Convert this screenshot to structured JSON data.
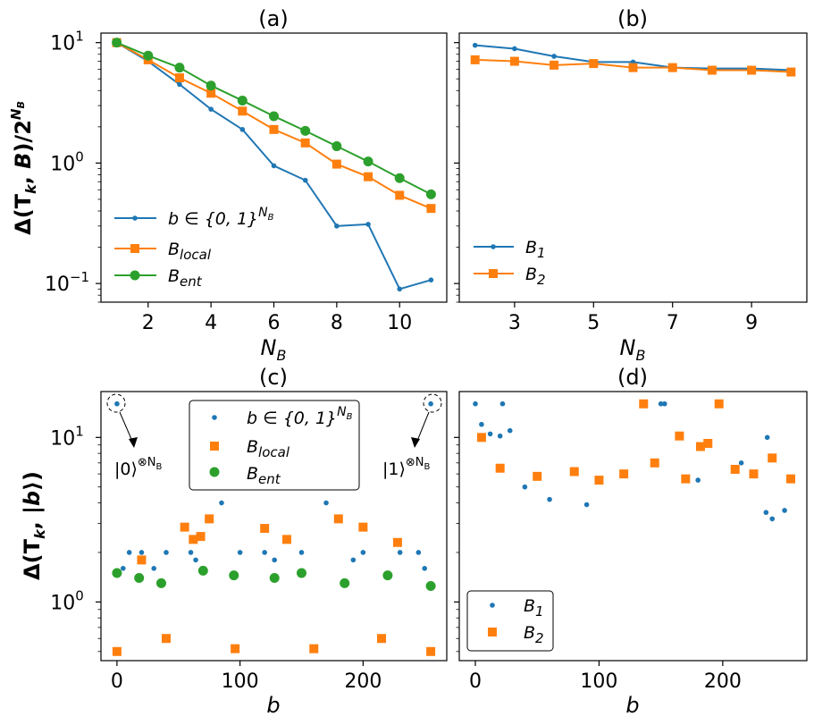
{
  "colors": {
    "blue": "#1f77b4",
    "orange": "#ff7f0e",
    "green": "#2ca02c"
  },
  "chart_data": [
    {
      "panel": "a",
      "type": "line",
      "title": "(a)",
      "xlabel": "N_B",
      "ylabel": "Δ(T_k, B)/2^{N_B}",
      "yscale": "log",
      "xlim": [
        0.5,
        11.5
      ],
      "ylim": [
        0.07,
        12
      ],
      "xticks": [
        2,
        4,
        6,
        8,
        10
      ],
      "yticks": [
        0.1,
        1,
        10
      ],
      "legend_position": "lower-left",
      "series": [
        {
          "name": "b∈{0,1}^{N_B}",
          "color": "blue",
          "marker": "dot",
          "x": [
            1,
            2,
            3,
            4,
            5,
            6,
            7,
            8,
            9,
            10,
            11
          ],
          "values": [
            10,
            7.0,
            4.5,
            2.8,
            1.9,
            0.95,
            0.72,
            0.3,
            0.31,
            0.09,
            0.107
          ]
        },
        {
          "name": "B_local",
          "color": "orange",
          "marker": "square",
          "x": [
            1,
            2,
            3,
            4,
            5,
            6,
            7,
            8,
            9,
            10,
            11
          ],
          "values": [
            10,
            7.2,
            5.1,
            3.8,
            2.7,
            1.9,
            1.47,
            0.98,
            0.77,
            0.54,
            0.42
          ]
        },
        {
          "name": "B_ent",
          "color": "green",
          "marker": "circle",
          "x": [
            1,
            2,
            3,
            4,
            5,
            6,
            7,
            8,
            9,
            10,
            11
          ],
          "values": [
            10,
            7.8,
            6.2,
            4.4,
            3.3,
            2.45,
            1.85,
            1.38,
            1.03,
            0.75,
            0.55
          ]
        }
      ]
    },
    {
      "panel": "b",
      "type": "line",
      "title": "(b)",
      "xlabel": "N_B",
      "yscale": "log",
      "xlim": [
        1.6,
        10.4
      ],
      "ylim": [
        0.07,
        12
      ],
      "xticks": [
        3,
        5,
        7,
        9
      ],
      "legend_position": "lower-left",
      "series": [
        {
          "name": "B_1",
          "color": "blue",
          "marker": "dot",
          "x": [
            2,
            3,
            4,
            5,
            6,
            7,
            8,
            9,
            10
          ],
          "values": [
            9.5,
            8.9,
            7.7,
            6.9,
            6.9,
            6.2,
            6.1,
            6.1,
            5.9
          ]
        },
        {
          "name": "B_2",
          "color": "orange",
          "marker": "square",
          "x": [
            2,
            3,
            4,
            5,
            6,
            7,
            8,
            9,
            10
          ],
          "values": [
            7.2,
            7.0,
            6.5,
            6.7,
            6.2,
            6.2,
            5.9,
            5.9,
            5.7
          ]
        }
      ]
    },
    {
      "panel": "c",
      "type": "scatter",
      "title": "(c)",
      "xlabel": "b",
      "ylabel": "Δ(T_k, |b⟩)",
      "yscale": "log",
      "xlim": [
        -13,
        268
      ],
      "ylim": [
        0.44,
        19
      ],
      "xticks": [
        0,
        100,
        200
      ],
      "yticks": [
        1,
        10
      ],
      "legend_position": "top-center",
      "annotations": [
        "|0⟩^{⊗N_B}",
        "|1⟩^{⊗N_B}"
      ],
      "series": [
        {
          "name": "b∈{0,1}^{N_B}",
          "color": "blue",
          "marker": "dot",
          "x": [
            0,
            255,
            85,
            170,
            10,
            20,
            40,
            60,
            100,
            120,
            150,
            200,
            230,
            245,
            5,
            250,
            30,
            64,
            128,
            192
          ],
          "values": [
            16,
            16,
            4,
            4,
            2,
            2,
            2,
            2,
            2,
            2,
            2,
            2,
            2,
            2,
            1.6,
            1.6,
            1.6,
            1.8,
            1.8,
            1.8
          ]
        },
        {
          "name": "B_local",
          "color": "orange",
          "marker": "square",
          "x": [
            0,
            255,
            96,
            160,
            40,
            215,
            55,
            75,
            180,
            200,
            62,
            68,
            120,
            138,
            228,
            20
          ],
          "values": [
            0.5,
            0.5,
            0.52,
            0.52,
            0.6,
            0.6,
            2.85,
            3.2,
            3.2,
            2.85,
            2.4,
            2.5,
            2.8,
            2.4,
            2.3,
            1.8
          ]
        },
        {
          "name": "B_ent",
          "color": "green",
          "marker": "circle",
          "x": [
            0,
            18,
            36,
            70,
            95,
            128,
            150,
            185,
            220,
            255
          ],
          "values": [
            1.5,
            1.4,
            1.3,
            1.55,
            1.45,
            1.4,
            1.5,
            1.3,
            1.45,
            1.25
          ]
        }
      ]
    },
    {
      "panel": "d",
      "type": "scatter",
      "title": "(d)",
      "xlabel": "b",
      "yscale": "log",
      "xlim": [
        -13,
        268
      ],
      "ylim": [
        0.44,
        19
      ],
      "xticks": [
        0,
        100,
        200
      ],
      "legend_position": "lower-left",
      "series": [
        {
          "name": "B_1",
          "color": "blue",
          "marker": "dot",
          "x": [
            0,
            22,
            150,
            153,
            236,
            5,
            12,
            20,
            28,
            40,
            60,
            90,
            120,
            180,
            215,
            235,
            240,
            250
          ],
          "values": [
            16,
            16,
            16,
            16,
            10,
            12,
            10.5,
            10.2,
            11,
            5,
            4.2,
            3.9,
            6,
            5.5,
            7,
            3.5,
            3.2,
            3.6
          ]
        },
        {
          "name": "B_2",
          "color": "orange",
          "marker": "square",
          "x": [
            136,
            197,
            165,
            188,
            182,
            5,
            20,
            50,
            80,
            100,
            120,
            145,
            170,
            210,
            225,
            240,
            255
          ],
          "values": [
            16,
            16,
            10.2,
            9.2,
            8.8,
            10,
            6.5,
            5.8,
            6.2,
            5.5,
            6,
            7,
            5.6,
            6.4,
            6,
            7.5,
            5.6
          ]
        }
      ]
    }
  ]
}
